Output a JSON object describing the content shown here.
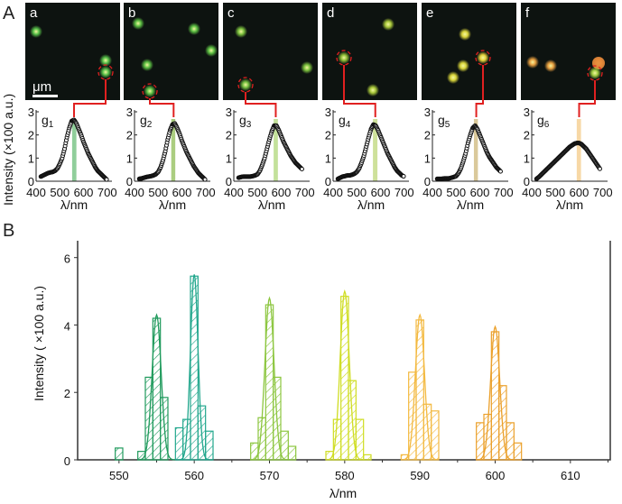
{
  "panel_labels": {
    "A": "A",
    "B": "B"
  },
  "scale_bar_label": "μm",
  "colors": {
    "connector": "#e02020",
    "panel_bg": "#0d1310"
  },
  "images": [
    {
      "label": "a",
      "dot_color": "#58c24a",
      "dots": 3
    },
    {
      "label": "b",
      "dot_color": "#5cc043",
      "dots": 5
    },
    {
      "label": "c",
      "dot_color": "#7cc23e",
      "dots": 3
    },
    {
      "label": "d",
      "dot_color": "#a9c83a",
      "dots": 3
    },
    {
      "label": "e",
      "dot_color": "#d9d53a",
      "dots": 4
    },
    {
      "label": "f",
      "dot_color": "#e9a040",
      "dots": 4
    }
  ],
  "chart_data": [
    {
      "type": "scatter",
      "ylabel": "Intensity (×100 a.u.)",
      "xlabel": "λ/nm",
      "xlim": [
        400,
        720
      ],
      "ylim": [
        0,
        3
      ],
      "xticks": [
        "400",
        "500",
        "600",
        "700"
      ],
      "yticks": [
        "0",
        "1",
        "2",
        "3"
      ],
      "x": [
        420,
        430,
        440,
        450,
        460,
        470,
        480,
        490,
        500,
        510,
        520,
        530,
        540,
        550,
        560,
        570,
        580,
        590,
        600,
        610,
        620,
        630,
        640,
        650,
        660,
        670,
        680,
        690,
        700
      ],
      "series": [
        {
          "name": "g",
          "sub": "1",
          "band": [
            552,
            570
          ],
          "band_color": "#7cc68a",
          "values": [
            0.2,
            0.25,
            0.3,
            0.35,
            0.38,
            0.4,
            0.45,
            0.55,
            0.75,
            1.0,
            1.4,
            1.9,
            2.3,
            2.6,
            2.65,
            2.5,
            2.25,
            2.0,
            1.7,
            1.45,
            1.2,
            1.0,
            0.8,
            0.6,
            0.45,
            0.35,
            0.25,
            0.15,
            0.05
          ]
        },
        {
          "name": "g",
          "sub": "2",
          "band": [
            555,
            572
          ],
          "band_color": "#9cc46a",
          "values": [
            0.1,
            0.12,
            0.15,
            0.18,
            0.2,
            0.22,
            0.25,
            0.3,
            0.4,
            0.6,
            0.9,
            1.3,
            1.8,
            2.2,
            2.45,
            2.5,
            2.3,
            2.05,
            1.75,
            1.5,
            1.25,
            1.05,
            0.85,
            0.65,
            0.5,
            0.35,
            0.25,
            0.15,
            0.05
          ]
        },
        {
          "name": "g",
          "sub": "3",
          "band": [
            568,
            586
          ],
          "band_color": "#b8dc8a",
          "values": [
            0.15,
            0.18,
            0.2,
            0.2,
            0.2,
            0.2,
            0.22,
            0.25,
            0.3,
            0.45,
            0.7,
            1.0,
            1.4,
            1.8,
            2.15,
            2.4,
            2.4,
            2.2,
            1.95,
            1.7,
            1.5,
            1.3,
            1.1,
            0.95,
            0.8,
            0.7,
            0.6,
            0.5,
            null
          ]
        },
        {
          "name": "g",
          "sub": "4",
          "band": [
            568,
            587
          ],
          "band_color": "#c6dc8a",
          "values": [
            0.1,
            0.15,
            0.2,
            0.22,
            0.25,
            0.25,
            0.28,
            0.32,
            0.4,
            0.55,
            0.8,
            1.1,
            1.5,
            1.9,
            2.25,
            2.45,
            2.4,
            2.2,
            1.95,
            1.7,
            1.45,
            1.2,
            1.0,
            0.8,
            0.6,
            0.45,
            0.35,
            0.25,
            0.2
          ]
        },
        {
          "name": "g",
          "sub": "5",
          "band": [
            575,
            592
          ],
          "band_color": "#d4c08a",
          "values": [
            0.1,
            0.1,
            0.1,
            0.12,
            0.12,
            0.12,
            0.15,
            0.18,
            0.22,
            0.35,
            0.55,
            0.85,
            1.2,
            1.65,
            2.0,
            2.3,
            2.4,
            2.25,
            2.0,
            1.75,
            1.5,
            1.25,
            1.05,
            0.9,
            0.75,
            0.6,
            0.5,
            0.4,
            null
          ]
        },
        {
          "name": "g",
          "sub": "6",
          "band": [
            590,
            608
          ],
          "band_color": "#f6d196",
          "values": [
            0.1,
            0.18,
            0.28,
            0.38,
            0.48,
            0.58,
            0.68,
            0.78,
            0.88,
            0.98,
            1.08,
            1.18,
            1.28,
            1.38,
            1.48,
            1.55,
            1.62,
            1.65,
            1.65,
            1.6,
            1.5,
            1.4,
            1.25,
            1.1,
            0.95,
            0.8,
            0.65,
            0.5,
            null
          ]
        }
      ]
    },
    {
      "type": "bar",
      "subtype": "histogram-with-fit",
      "ylabel": "Intensity ( ×100 a.u.)",
      "xlabel": "λ/nm",
      "xlim": [
        544.5,
        615.3
      ],
      "ylim": [
        0,
        6.5
      ],
      "xticks": [
        "550",
        "560",
        "570",
        "580",
        "590",
        "600",
        "610"
      ],
      "yticks": [
        "0",
        "2",
        "4",
        "6"
      ],
      "bin_width": 1,
      "series": [
        {
          "center": 555,
          "color": "#1f9a5c",
          "fit_peak": 4.3,
          "fit_sigma": 0.6,
          "bins": [
            550,
            553,
            554,
            555,
            556
          ],
          "values": [
            0.35,
            0.25,
            2.45,
            4.2,
            1.85
          ]
        },
        {
          "center": 560,
          "color": "#22a78d",
          "fit_peak": 5.5,
          "fit_sigma": 0.5,
          "bins": [
            558,
            559,
            560,
            561,
            562
          ],
          "values": [
            0.95,
            1.2,
            5.45,
            1.6,
            0.85
          ]
        },
        {
          "center": 570,
          "color": "#8cc63f",
          "fit_peak": 4.8,
          "fit_sigma": 0.6,
          "bins": [
            568,
            569,
            570,
            571,
            572,
            573
          ],
          "values": [
            0.5,
            1.25,
            4.6,
            2.45,
            0.85,
            0.4
          ]
        },
        {
          "center": 580,
          "color": "#cfdd22",
          "fit_peak": 5.0,
          "fit_sigma": 0.6,
          "bins": [
            578,
            579,
            580,
            581,
            582,
            583
          ],
          "values": [
            0.25,
            1.2,
            4.85,
            2.35,
            1.2,
            0.15
          ]
        },
        {
          "center": 590,
          "color": "#f3b940",
          "fit_peak": 4.3,
          "fit_sigma": 0.6,
          "bins": [
            588,
            589,
            590,
            591,
            592
          ],
          "values": [
            0.15,
            2.6,
            4.15,
            1.65,
            1.45
          ]
        },
        {
          "center": 600,
          "color": "#eba02a",
          "fit_peak": 3.95,
          "fit_sigma": 0.6,
          "bins": [
            598,
            599,
            600,
            601,
            602,
            603
          ],
          "values": [
            1.1,
            1.35,
            3.8,
            2.2,
            1.1,
            0.5
          ]
        }
      ]
    }
  ]
}
